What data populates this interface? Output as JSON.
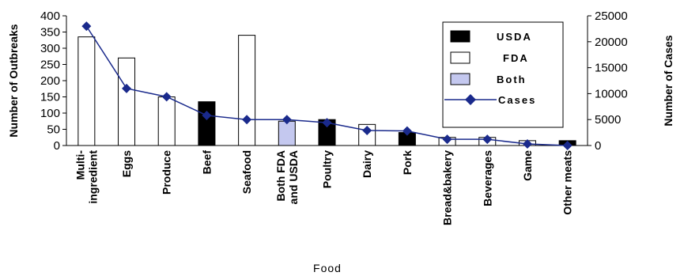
{
  "chart_data": {
    "type": "bar",
    "title": "",
    "xlabel": "Food",
    "ylabel": "Number of Outbreaks",
    "y2label": "Number of Cases",
    "ylim": [
      0,
      400
    ],
    "y2lim": [
      0,
      25000
    ],
    "yticks": [
      "400",
      "350",
      "300",
      "250",
      "200",
      "150",
      "100",
      "50",
      "0"
    ],
    "y2ticks": [
      "25000",
      "20000",
      "15000",
      "10000",
      "5000",
      "0"
    ],
    "categories": [
      "Multi-ingredient",
      "Eggs",
      "Produce",
      "Beef",
      "Seafood",
      "Both FDA and USDA",
      "Poultry",
      "Dairy",
      "Pork",
      "Bread&bakery",
      "Beverages",
      "Game",
      "Other meats"
    ],
    "category_lines": [
      [
        "Multi-",
        "ingredient"
      ],
      [
        "Eggs"
      ],
      [
        "Produce"
      ],
      [
        "Beef"
      ],
      [
        "Seafood"
      ],
      [
        "Both FDA",
        "and USDA"
      ],
      [
        "Poultry"
      ],
      [
        "Dairy"
      ],
      [
        "Pork"
      ],
      [
        "Bread&bakery"
      ],
      [
        "Beverages"
      ],
      [
        "Game"
      ],
      [
        "Other meats"
      ]
    ],
    "bars": {
      "values": [
        335,
        270,
        150,
        135,
        340,
        75,
        80,
        65,
        40,
        25,
        25,
        15,
        15
      ],
      "agency": [
        "FDA",
        "FDA",
        "FDA",
        "USDA",
        "FDA",
        "Both",
        "USDA",
        "FDA",
        "USDA",
        "FDA",
        "FDA",
        "FDA",
        "USDA"
      ]
    },
    "series": [
      {
        "name": "USDA",
        "type": "bar",
        "color": "#000000"
      },
      {
        "name": "FDA",
        "type": "bar",
        "color": "#ffffff"
      },
      {
        "name": "Both",
        "type": "bar",
        "color": "#c4c8ef"
      },
      {
        "name": "Cases",
        "type": "line",
        "axis": "right",
        "color": "#1a2a8c",
        "values": [
          23000,
          11000,
          9400,
          5800,
          5000,
          5000,
          4400,
          2900,
          2800,
          1200,
          1200,
          300,
          0
        ]
      }
    ],
    "legend": {
      "position": "top-right",
      "entries": [
        "USDA",
        "FDA",
        "Both",
        "Cases"
      ]
    },
    "grid": false
  }
}
